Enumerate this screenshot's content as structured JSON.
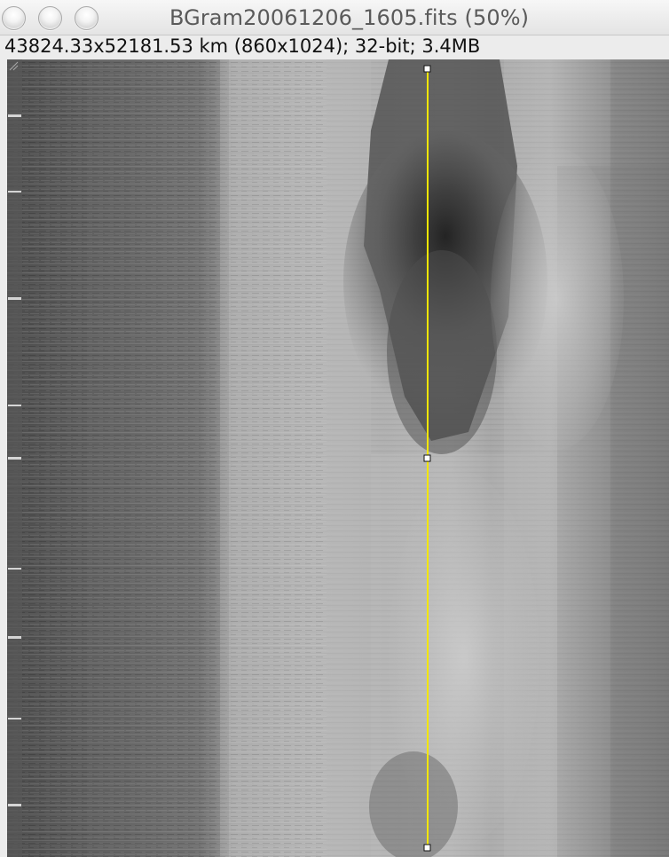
{
  "window": {
    "title": "BGram20061206_1605.fits (50%)",
    "info": "43824.33x52181.53 km (860x1024); 32-bit; 3.4MB"
  },
  "controls": {
    "close_icon": "close-icon",
    "minimize_icon": "minimize-icon",
    "zoom_icon": "zoom-icon"
  },
  "image": {
    "zoom": "50%",
    "selection_color": "#f2e600"
  }
}
